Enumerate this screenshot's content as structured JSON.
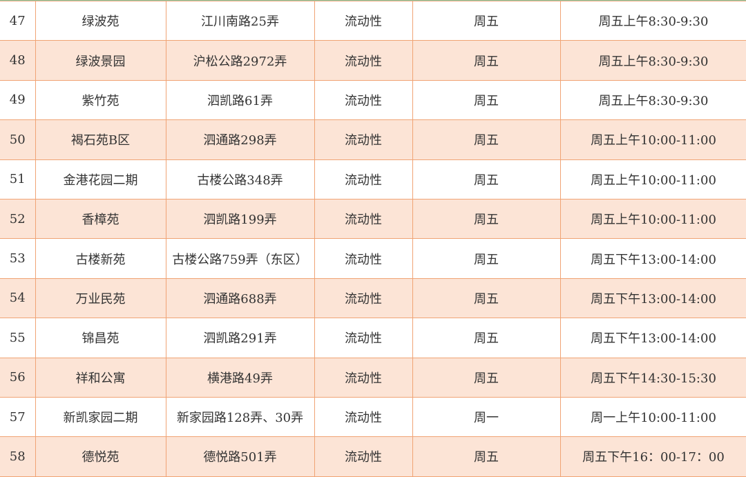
{
  "colors": {
    "border": "#f0a374",
    "alt_row": "#fce4d6",
    "top_line": "#7fc9a4"
  },
  "rows": [
    {
      "no": "47",
      "name": "绿波苑",
      "address": "江川南路25弄",
      "type": "流动性",
      "day": "周五",
      "time": "周五上午8:30-9:30"
    },
    {
      "no": "48",
      "name": "绿波景园",
      "address": "沪松公路2972弄",
      "type": "流动性",
      "day": "周五",
      "time": "周五上午8:30-9:30"
    },
    {
      "no": "49",
      "name": "紫竹苑",
      "address": "泗凯路61弄",
      "type": "流动性",
      "day": "周五",
      "time": "周五上午8:30-9:30"
    },
    {
      "no": "50",
      "name": "褐石苑B区",
      "address": "泗通路298弄",
      "type": "流动性",
      "day": "周五",
      "time": "周五上午10:00-11:00"
    },
    {
      "no": "51",
      "name": "金港花园二期",
      "address": "古楼公路348弄",
      "type": "流动性",
      "day": "周五",
      "time": "周五上午10:00-11:00"
    },
    {
      "no": "52",
      "name": "香樟苑",
      "address": "泗凯路199弄",
      "type": "流动性",
      "day": "周五",
      "time": "周五上午10:00-11:00"
    },
    {
      "no": "53",
      "name": "古楼新苑",
      "address": "古楼公路759弄（东区）",
      "type": "流动性",
      "day": "周五",
      "time": "周五下午13:00-14:00"
    },
    {
      "no": "54",
      "name": "万业民苑",
      "address": "泗通路688弄",
      "type": "流动性",
      "day": "周五",
      "time": "周五下午13:00-14:00"
    },
    {
      "no": "55",
      "name": "锦昌苑",
      "address": "泗凯路291弄",
      "type": "流动性",
      "day": "周五",
      "time": "周五下午13:00-14:00"
    },
    {
      "no": "56",
      "name": "祥和公寓",
      "address": "横港路49弄",
      "type": "流动性",
      "day": "周五",
      "time": "周五下午14:30-15:30"
    },
    {
      "no": "57",
      "name": "新凯家园二期",
      "address": "新家园路128弄、30弄",
      "type": "流动性",
      "day": "周一",
      "time": "周一上午10:00-11:00"
    },
    {
      "no": "58",
      "name": "德悦苑",
      "address": "德悦路501弄",
      "type": "流动性",
      "day": "周五",
      "time": "周五下午16：00-17：00"
    }
  ]
}
